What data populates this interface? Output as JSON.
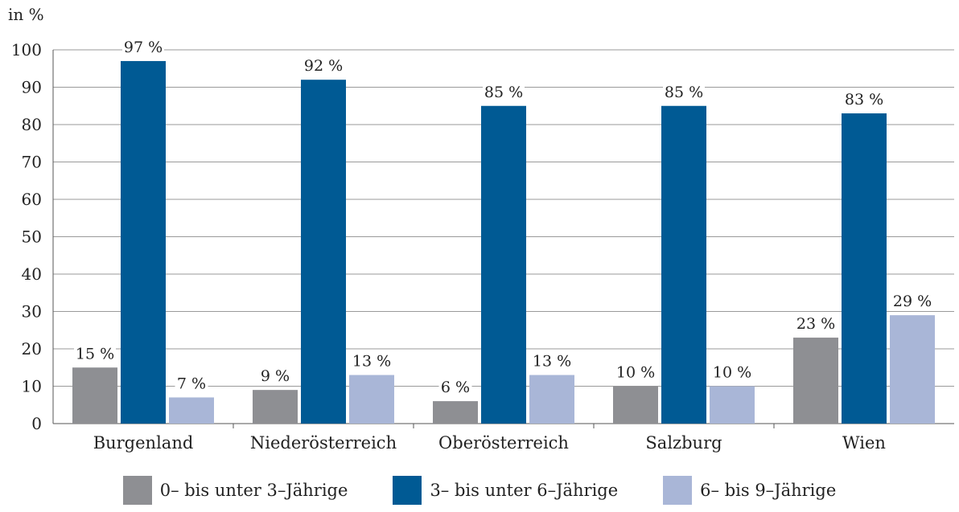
{
  "chart_data": {
    "type": "bar",
    "unit_label": "in %",
    "categories": [
      "Burgenland",
      "Niederösterreich",
      "Oberösterreich",
      "Salzburg",
      "Wien"
    ],
    "series": [
      {
        "name": "0– bis unter 3–Jährige",
        "color": "#8e8f93",
        "values": [
          15,
          9,
          6,
          10,
          23
        ],
        "labels": [
          "15 %",
          "9 %",
          "6 %",
          "10 %",
          "23 %"
        ]
      },
      {
        "name": "3– bis unter 6–Jährige",
        "color": "#005a94",
        "values": [
          97,
          92,
          85,
          85,
          83
        ],
        "labels": [
          "97 %",
          "92 %",
          "85 %",
          "85 %",
          "83 %"
        ]
      },
      {
        "name": "6– bis 9–Jährige",
        "color": "#a9b6d7",
        "values": [
          7,
          13,
          13,
          10,
          29
        ],
        "labels": [
          "7 %",
          "13 %",
          "13 %",
          "10 %",
          "29 %"
        ]
      }
    ],
    "yticks": [
      "0",
      "10",
      "20",
      "30",
      "40",
      "50",
      "60",
      "70",
      "80",
      "90",
      "100"
    ],
    "ylim": [
      0,
      100
    ],
    "grid": true,
    "legend_position": "bottom"
  }
}
